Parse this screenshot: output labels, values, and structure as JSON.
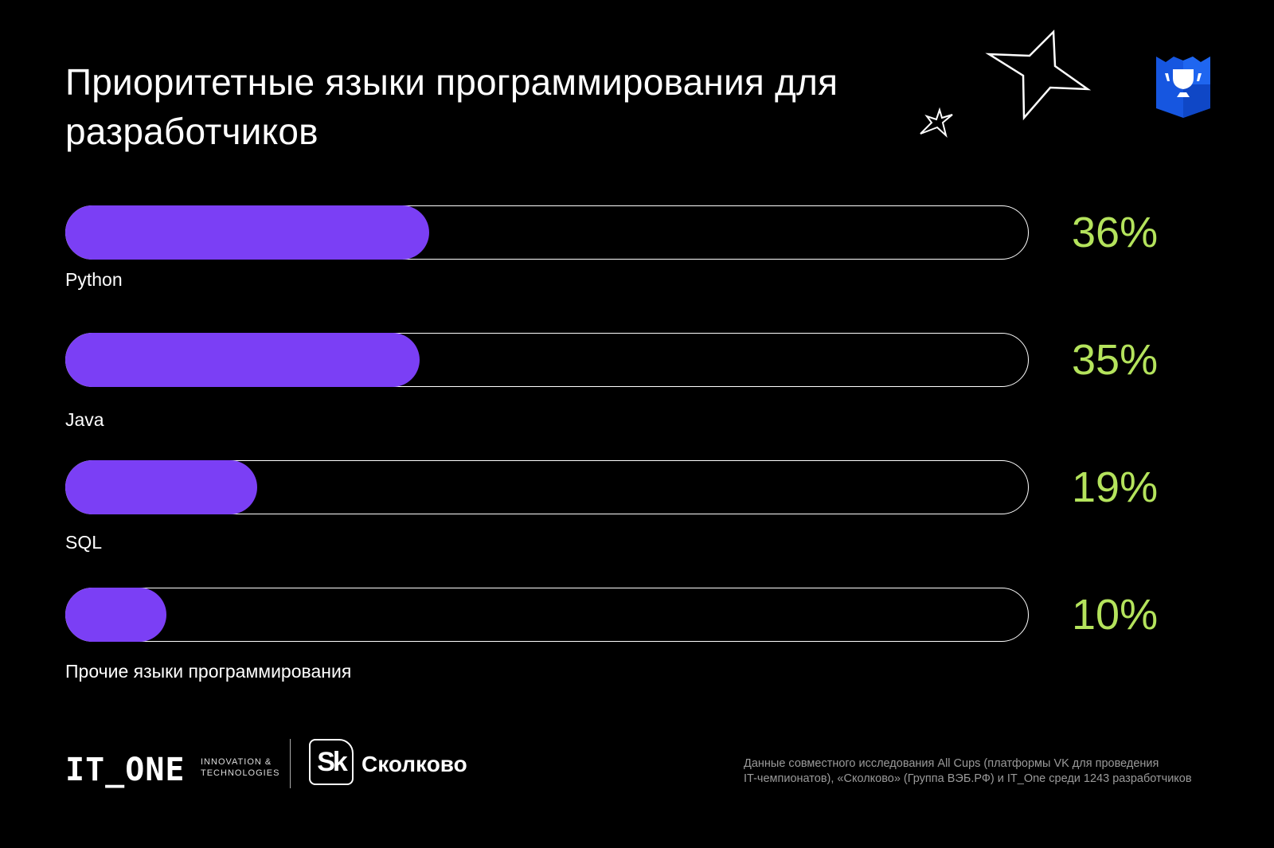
{
  "title": "Приоритетные языки программирования для разработчиков",
  "chart_data": {
    "type": "bar",
    "orientation": "horizontal",
    "title": "Приоритетные языки программирования для разработчиков",
    "categories": [
      "Python",
      "Java",
      "SQL",
      "Прочие языки программирования"
    ],
    "values": [
      36,
      35,
      19,
      10
    ],
    "value_labels": [
      "36%",
      "35%",
      "19%",
      "10%"
    ],
    "unit": "%",
    "colors": {
      "fill": "#7b3ff5",
      "value_text": "#b4e35c",
      "track_border": "#ffffff",
      "background": "#000000"
    }
  },
  "footer": {
    "itone_logo": "IT_ONE",
    "itone_tagline_1": "INNOVATION &",
    "itone_tagline_2": "TECHNOLOGIES",
    "skolkovo_badge": "Sk",
    "skolkovo_name": "Сколково",
    "source_line_1": "Данные совместного исследования All Cups (платформы VK для проведения",
    "source_line_2": "IT-чемпионатов), «Сколково» (Группа ВЭБ.РФ) и IT_One среди 1243 разработчиков"
  },
  "icons": [
    "star-outline-icon",
    "star-small-outline-icon",
    "trophy-shield-icon"
  ],
  "badge_color": "#1656e0"
}
